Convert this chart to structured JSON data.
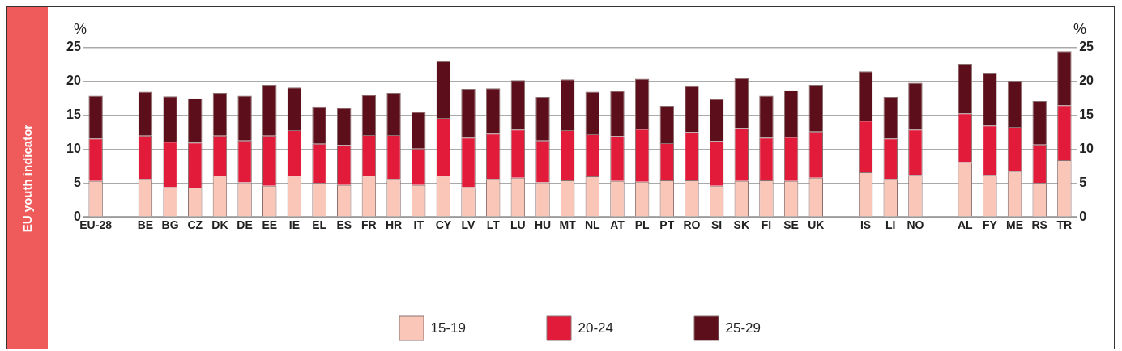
{
  "chart_data": {
    "type": "bar",
    "stacked": true,
    "ylabel": "%",
    "y2label": "%",
    "annotations": [
      "EU youth indicator"
    ],
    "categories": [
      "EU-28",
      null,
      "BE",
      "BG",
      "CZ",
      "DK",
      "DE",
      "EE",
      "IE",
      "EL",
      "ES",
      "FR",
      "HR",
      "IT",
      "CY",
      "LV",
      "LT",
      "LU",
      "HU",
      "MT",
      "NL",
      "AT",
      "PL",
      "PT",
      "RO",
      "SI",
      "SK",
      "FI",
      "SE",
      "UK",
      null,
      "IS",
      "LI",
      "NO",
      null,
      "AL",
      "FY",
      "ME",
      "RS",
      "TR"
    ],
    "series": [
      {
        "name": "15-19",
        "color": "#f9c6b8",
        "values": [
          5.3,
          null,
          5.6,
          4.4,
          4.3,
          6.1,
          5.1,
          4.6,
          6.1,
          5.0,
          4.7,
          6.1,
          5.6,
          4.7,
          6.1,
          4.4,
          5.6,
          5.8,
          5.1,
          5.4,
          6.0,
          5.3,
          5.2,
          5.4,
          5.4,
          4.6,
          5.3,
          5.4,
          5.3,
          5.8,
          null,
          6.6,
          5.6,
          6.2,
          null,
          8.1,
          6.2,
          6.7,
          5.0,
          8.4
        ]
      },
      {
        "name": "20-24",
        "color": "#e31b3a",
        "values": [
          6.3,
          null,
          6.4,
          6.7,
          6.7,
          5.9,
          6.2,
          7.4,
          6.7,
          5.8,
          5.9,
          6.0,
          6.5,
          5.4,
          8.5,
          7.3,
          6.7,
          7.1,
          6.2,
          7.4,
          6.2,
          6.6,
          7.8,
          5.5,
          7.1,
          6.6,
          7.8,
          6.3,
          6.5,
          6.8,
          null,
          7.6,
          6.0,
          6.7,
          null,
          7.2,
          7.3,
          6.6,
          5.7,
          8.1
        ]
      },
      {
        "name": "25-29",
        "color": "#5c0f1a",
        "values": [
          6.3,
          null,
          6.5,
          6.7,
          6.5,
          6.3,
          6.6,
          7.5,
          6.3,
          5.5,
          5.5,
          5.9,
          6.2,
          5.4,
          8.4,
          7.2,
          6.7,
          7.3,
          6.4,
          7.5,
          6.3,
          6.7,
          7.4,
          5.5,
          6.9,
          6.2,
          7.4,
          6.2,
          6.9,
          6.9,
          null,
          7.3,
          6.1,
          6.9,
          null,
          7.3,
          7.8,
          6.8,
          6.4,
          8.0
        ]
      }
    ],
    "ylim": [
      0,
      25
    ],
    "yticks": [
      0,
      5,
      10,
      15,
      20,
      25
    ],
    "y2lim": [
      0,
      25
    ],
    "y2ticks": [
      0,
      5,
      10,
      15,
      20,
      25
    ],
    "grid": "y",
    "legend": "bottom"
  }
}
